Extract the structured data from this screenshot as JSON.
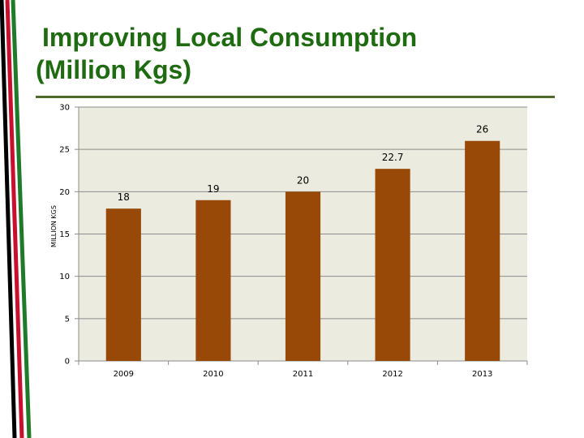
{
  "slide": {
    "title_line1": "Improving Local Consumption",
    "title_line2": "(Million Kgs)"
  },
  "colors": {
    "title": "#1e6b12",
    "rule": "#4e6b2a",
    "plot_background": "#ebebdf",
    "bar": "#984807",
    "stripe_green": "#1f7a2a",
    "stripe_red": "#c8102e",
    "stripe_black": "#000000"
  },
  "chart_data": {
    "type": "bar",
    "title": "",
    "xlabel": "",
    "ylabel": "MILLION KGS",
    "categories": [
      "2009",
      "2010",
      "2011",
      "2012",
      "2013"
    ],
    "values": [
      18,
      19,
      20,
      22.7,
      26
    ],
    "data_labels": [
      "18",
      "19",
      "20",
      "22.7",
      "26"
    ],
    "ylim": [
      0,
      30
    ],
    "yticks": [
      0,
      5,
      10,
      15,
      20,
      25,
      30
    ],
    "grid": true,
    "legend": "none"
  }
}
